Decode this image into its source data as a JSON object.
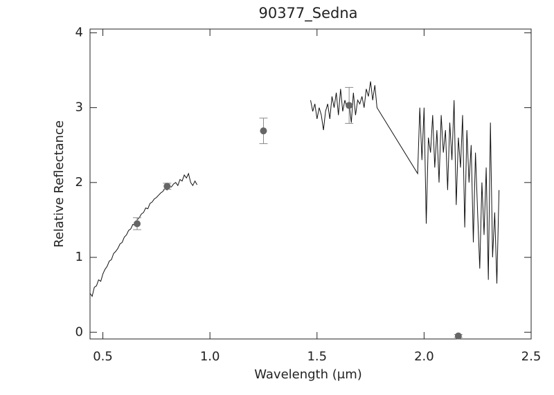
{
  "chart_data": {
    "type": "line",
    "title": "90377_Sedna",
    "xlabel": "Wavelength (μm)",
    "ylabel": "Relative Reflectance",
    "xlim": [
      0.44,
      2.5
    ],
    "ylim": [
      -0.09,
      4.05
    ],
    "xticks": [
      0.5,
      {
        "value": 1,
        "label": "1.0"
      },
      1.5,
      {
        "value": 2,
        "label": "2.0"
      },
      2.5
    ],
    "yticks": [
      0,
      1,
      2,
      3,
      4
    ],
    "series": [
      {
        "type": "line",
        "color": "#111111",
        "x": [
          0.44,
          0.45,
          0.46,
          0.47,
          0.48,
          0.49,
          0.5,
          0.51,
          0.52,
          0.53,
          0.54,
          0.55,
          0.56,
          0.57,
          0.58,
          0.59,
          0.6,
          0.61,
          0.62,
          0.63,
          0.64,
          0.65,
          0.66,
          0.67,
          0.68,
          0.69,
          0.7,
          0.71,
          0.72,
          0.73,
          0.74,
          0.75,
          0.76,
          0.77,
          0.78,
          0.79,
          0.8,
          0.81,
          0.82,
          0.83,
          0.84,
          0.85,
          0.86,
          0.87,
          0.88,
          0.89,
          0.9,
          0.91,
          0.92,
          0.93,
          0.94,
          1.2,
          1.47,
          1.48,
          1.49,
          1.5,
          1.51,
          1.52,
          1.53,
          1.54,
          1.55,
          1.56,
          1.57,
          1.58,
          1.59,
          1.6,
          1.61,
          1.62,
          1.63,
          1.64,
          1.65,
          1.66,
          1.67,
          1.68,
          1.69,
          1.7,
          1.71,
          1.72,
          1.73,
          1.74,
          1.75,
          1.76,
          1.77,
          1.78,
          1.97,
          1.98,
          1.99,
          2.0,
          2.01,
          2.02,
          2.03,
          2.04,
          2.05,
          2.06,
          2.07,
          2.08,
          2.09,
          2.1,
          2.11,
          2.12,
          2.13,
          2.14,
          2.15,
          2.16,
          2.17,
          2.18,
          2.19,
          2.2,
          2.21,
          2.22,
          2.23,
          2.24,
          2.25,
          2.26,
          2.27,
          2.28,
          2.29,
          2.3,
          2.31,
          2.32,
          2.33,
          2.34,
          2.35
        ],
        "values": [
          0.52,
          0.48,
          0.6,
          0.62,
          0.7,
          0.68,
          0.78,
          0.84,
          0.88,
          0.95,
          0.97,
          1.05,
          1.08,
          1.12,
          1.18,
          1.2,
          1.27,
          1.3,
          1.36,
          1.38,
          1.44,
          1.43,
          1.5,
          1.53,
          1.58,
          1.6,
          1.66,
          1.65,
          1.72,
          1.74,
          1.78,
          1.8,
          1.83,
          1.86,
          1.88,
          1.92,
          1.9,
          1.95,
          1.94,
          1.98,
          2.0,
          1.96,
          2.04,
          2.02,
          2.1,
          2.06,
          2.12,
          2.0,
          1.96,
          2.02,
          1.97,
          null,
          3.1,
          2.95,
          3.05,
          2.85,
          3.0,
          2.9,
          2.7,
          2.95,
          3.05,
          2.85,
          3.15,
          3.0,
          3.2,
          2.9,
          3.25,
          2.95,
          3.1,
          3.0,
          3.05,
          2.8,
          3.2,
          2.9,
          3.1,
          3.05,
          3.15,
          3.0,
          3.25,
          3.15,
          3.35,
          3.1,
          3.3,
          3.0,
          2.12,
          3.0,
          2.3,
          3.0,
          1.45,
          2.6,
          2.4,
          2.9,
          2.2,
          2.7,
          2.0,
          2.9,
          2.4,
          2.7,
          1.9,
          2.8,
          2.3,
          3.1,
          1.7,
          2.6,
          2.2,
          2.9,
          1.4,
          2.7,
          2.0,
          2.5,
          1.2,
          2.4,
          1.6,
          0.85,
          2.0,
          1.3,
          2.2,
          0.7,
          2.8,
          1.0,
          1.6,
          0.65,
          1.9
        ]
      },
      {
        "type": "scatter",
        "color": "#666666",
        "x": [
          0.66,
          0.8,
          1.25,
          1.65,
          2.16
        ],
        "values": [
          1.45,
          1.95,
          2.69,
          3.03,
          -0.05
        ],
        "errors": [
          0.08,
          0.04,
          0.17,
          0.24,
          0.02
        ]
      }
    ]
  }
}
